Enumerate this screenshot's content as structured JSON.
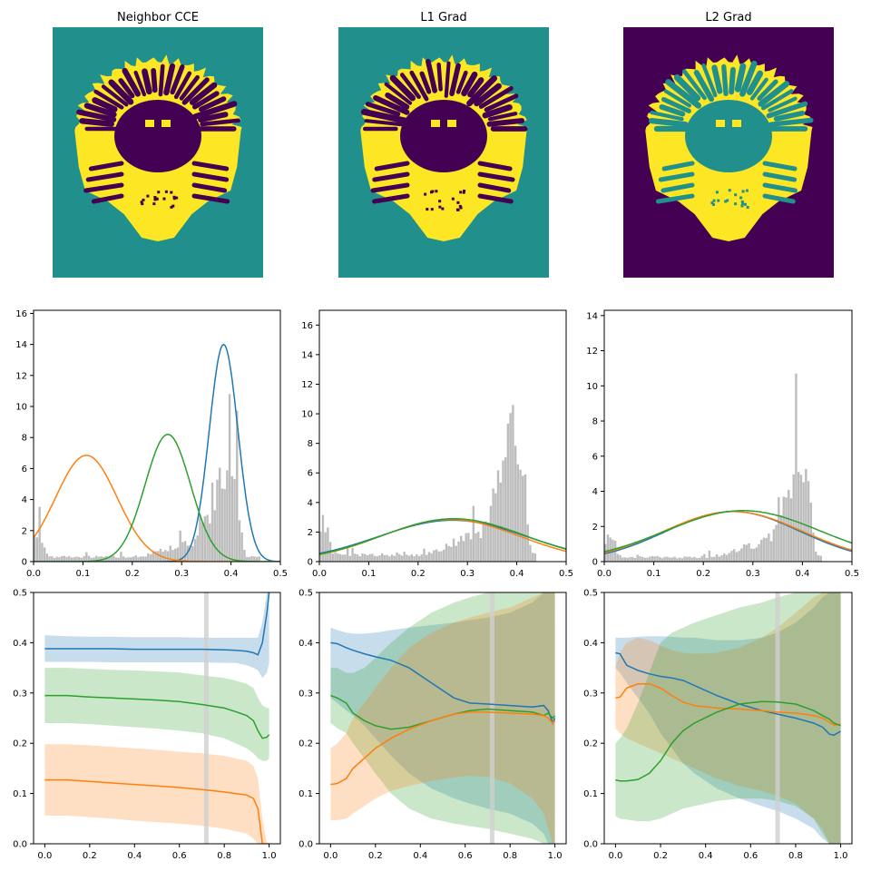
{
  "colors": {
    "blue": "#1f77b4",
    "orange": "#ff7f0e",
    "green": "#2ca02c",
    "hist": "#bdbdbd",
    "teal": "#21908d",
    "purple": "#440154",
    "yellow": "#fde725",
    "vline": "#cfcfcf"
  },
  "images": [
    {
      "title": "Neighbor CCE",
      "background": "teal",
      "brain": "yellow",
      "interior": "purple"
    },
    {
      "title": "L1 Grad",
      "background": "teal",
      "brain": "yellow",
      "interior": "purple"
    },
    {
      "title": "L2 Grad",
      "background": "purple",
      "brain": "yellow",
      "interior": "teal"
    }
  ],
  "chart_data": [
    {
      "type": "bar",
      "panel": "row2-col1",
      "title": "",
      "xlim": [
        0,
        0.5
      ],
      "ylim": [
        0,
        16.2
      ],
      "xticks": [
        0.0,
        0.1,
        0.2,
        0.3,
        0.4,
        0.5
      ],
      "yticks": [
        0,
        2,
        4,
        6,
        8,
        10,
        12,
        14,
        16
      ],
      "histogram_peak": 10.8,
      "histogram_cutoff": 0.46,
      "series": [
        {
          "color": "blue",
          "mean": 0.385,
          "sd": 0.029,
          "peak": 14.0
        },
        {
          "color": "orange",
          "mean": 0.107,
          "sd": 0.062,
          "peak": 6.85
        },
        {
          "color": "green",
          "mean": 0.272,
          "sd": 0.046,
          "peak": 8.2
        }
      ]
    },
    {
      "type": "bar",
      "panel": "row2-col2",
      "title": "",
      "xlim": [
        0,
        0.5
      ],
      "ylim": [
        0,
        17.0
      ],
      "xticks": [
        0.0,
        0.1,
        0.2,
        0.3,
        0.4,
        0.5
      ],
      "yticks": [
        0,
        2,
        4,
        6,
        8,
        10,
        12,
        14,
        16
      ],
      "histogram_peak": 10.6,
      "histogram_cutoff": 0.44,
      "series": [
        {
          "color": "blue",
          "mean": 0.27,
          "sd": 0.15,
          "peak": 2.8
        },
        {
          "color": "orange",
          "mean": 0.265,
          "sd": 0.14,
          "peak": 2.85
        },
        {
          "color": "green",
          "mean": 0.272,
          "sd": 0.145,
          "peak": 2.9
        }
      ]
    },
    {
      "type": "bar",
      "panel": "row2-col3",
      "title": "",
      "xlim": [
        0,
        0.5
      ],
      "ylim": [
        0,
        14.3
      ],
      "xticks": [
        0.0,
        0.1,
        0.2,
        0.3,
        0.4,
        0.5
      ],
      "yticks": [
        0,
        2,
        4,
        6,
        8,
        10,
        12,
        14
      ],
      "histogram_peak": 10.7,
      "histogram_cutoff": 0.44,
      "series": [
        {
          "color": "blue",
          "mean": 0.26,
          "sd": 0.135,
          "peak": 2.85
        },
        {
          "color": "orange",
          "mean": 0.26,
          "sd": 0.14,
          "peak": 2.85
        },
        {
          "color": "green",
          "mean": 0.28,
          "sd": 0.155,
          "peak": 2.9
        }
      ]
    },
    {
      "type": "line",
      "panel": "row3-col1",
      "title": "",
      "xlim": [
        -0.05,
        1.05
      ],
      "ylim": [
        0,
        0.5
      ],
      "xticks": [
        0.0,
        0.2,
        0.4,
        0.6,
        0.8,
        1.0
      ],
      "yticks": [
        0.0,
        0.1,
        0.2,
        0.3,
        0.4,
        0.5
      ],
      "vline": 0.72,
      "x": [
        0,
        0.1,
        0.2,
        0.3,
        0.4,
        0.5,
        0.6,
        0.7,
        0.8,
        0.85,
        0.9,
        0.93,
        0.95,
        0.97,
        0.99,
        1.0
      ],
      "series": [
        {
          "color": "blue",
          "values": [
            0.388,
            0.388,
            0.388,
            0.388,
            0.387,
            0.387,
            0.387,
            0.387,
            0.386,
            0.385,
            0.383,
            0.38,
            0.376,
            0.4,
            0.46,
            0.5
          ],
          "upper": [
            0.415,
            0.413,
            0.412,
            0.412,
            0.411,
            0.411,
            0.411,
            0.41,
            0.41,
            0.41,
            0.41,
            0.41,
            0.41,
            0.44,
            0.5,
            0.5
          ],
          "lower": [
            0.362,
            0.362,
            0.362,
            0.361,
            0.361,
            0.361,
            0.361,
            0.361,
            0.36,
            0.36,
            0.355,
            0.35,
            0.345,
            0.33,
            0.34,
            0.36
          ]
        },
        {
          "color": "green",
          "values": [
            0.295,
            0.295,
            0.292,
            0.29,
            0.288,
            0.286,
            0.283,
            0.277,
            0.27,
            0.263,
            0.255,
            0.245,
            0.225,
            0.21,
            0.212,
            0.217
          ],
          "upper": [
            0.35,
            0.35,
            0.348,
            0.346,
            0.345,
            0.343,
            0.341,
            0.335,
            0.33,
            0.325,
            0.318,
            0.31,
            0.29,
            0.275,
            0.27,
            0.27
          ],
          "lower": [
            0.24,
            0.24,
            0.238,
            0.235,
            0.232,
            0.229,
            0.225,
            0.22,
            0.21,
            0.2,
            0.19,
            0.18,
            0.17,
            0.165,
            0.165,
            0.17
          ]
        },
        {
          "color": "orange",
          "values": [
            0.127,
            0.127,
            0.124,
            0.121,
            0.118,
            0.115,
            0.112,
            0.108,
            0.103,
            0.1,
            0.097,
            0.09,
            0.07,
            0.0,
            0.0,
            0.0
          ],
          "upper": [
            0.198,
            0.198,
            0.196,
            0.193,
            0.19,
            0.187,
            0.183,
            0.18,
            0.175,
            0.17,
            0.165,
            0.155,
            0.13,
            0.05,
            0.0,
            0.0
          ],
          "lower": [
            0.056,
            0.056,
            0.053,
            0.05,
            0.046,
            0.043,
            0.04,
            0.036,
            0.03,
            0.025,
            0.02,
            0.01,
            0.0,
            0.0,
            0.0,
            0.0
          ]
        }
      ]
    },
    {
      "type": "line",
      "panel": "row3-col2",
      "title": "",
      "xlim": [
        -0.05,
        1.05
      ],
      "ylim": [
        0,
        0.5
      ],
      "xticks": [
        0.0,
        0.2,
        0.4,
        0.6,
        0.8,
        1.0
      ],
      "yticks": [
        0.0,
        0.1,
        0.2,
        0.3,
        0.4,
        0.5
      ],
      "vline": 0.72,
      "x": [
        0,
        0.03,
        0.07,
        0.1,
        0.15,
        0.2,
        0.27,
        0.35,
        0.45,
        0.55,
        0.62,
        0.7,
        0.8,
        0.9,
        0.95,
        0.97,
        0.99,
        1.0
      ],
      "series": [
        {
          "color": "blue",
          "values": [
            0.4,
            0.398,
            0.39,
            0.385,
            0.378,
            0.372,
            0.365,
            0.35,
            0.32,
            0.29,
            0.28,
            0.278,
            0.275,
            0.272,
            0.275,
            0.265,
            0.24,
            0.25
          ],
          "upper": [
            0.43,
            0.425,
            0.42,
            0.418,
            0.418,
            0.42,
            0.425,
            0.43,
            0.435,
            0.44,
            0.445,
            0.45,
            0.46,
            0.48,
            0.5,
            0.5,
            0.5,
            0.5
          ],
          "lower": [
            0.29,
            0.28,
            0.265,
            0.255,
            0.235,
            0.21,
            0.175,
            0.14,
            0.11,
            0.09,
            0.08,
            0.07,
            0.06,
            0.04,
            0.02,
            0.0,
            0.0,
            0.0
          ]
        },
        {
          "color": "green",
          "values": [
            0.295,
            0.29,
            0.28,
            0.26,
            0.245,
            0.235,
            0.228,
            0.232,
            0.245,
            0.258,
            0.265,
            0.268,
            0.265,
            0.262,
            0.255,
            0.26,
            0.25,
            0.255
          ],
          "upper": [
            0.35,
            0.35,
            0.34,
            0.34,
            0.35,
            0.37,
            0.4,
            0.43,
            0.46,
            0.48,
            0.49,
            0.5,
            0.5,
            0.5,
            0.5,
            0.5,
            0.5,
            0.5
          ],
          "lower": [
            0.24,
            0.23,
            0.22,
            0.2,
            0.17,
            0.14,
            0.1,
            0.07,
            0.05,
            0.04,
            0.035,
            0.03,
            0.02,
            0.01,
            0.0,
            0.0,
            0.0,
            0.0
          ]
        },
        {
          "color": "orange",
          "values": [
            0.118,
            0.12,
            0.13,
            0.15,
            0.17,
            0.19,
            0.21,
            0.228,
            0.245,
            0.258,
            0.262,
            0.262,
            0.26,
            0.258,
            0.255,
            0.25,
            0.24,
            0.245
          ],
          "upper": [
            0.19,
            0.2,
            0.22,
            0.25,
            0.28,
            0.31,
            0.35,
            0.39,
            0.42,
            0.44,
            0.45,
            0.46,
            0.47,
            0.49,
            0.5,
            0.5,
            0.5,
            0.5
          ],
          "lower": [
            0.047,
            0.047,
            0.05,
            0.06,
            0.075,
            0.09,
            0.105,
            0.115,
            0.125,
            0.132,
            0.135,
            0.133,
            0.12,
            0.09,
            0.06,
            0.03,
            0.0,
            0.0
          ]
        }
      ]
    },
    {
      "type": "line",
      "panel": "row3-col3",
      "title": "",
      "xlim": [
        -0.05,
        1.05
      ],
      "ylim": [
        0,
        0.5
      ],
      "xticks": [
        0.0,
        0.2,
        0.4,
        0.6,
        0.8,
        1.0
      ],
      "yticks": [
        0.0,
        0.1,
        0.2,
        0.3,
        0.4,
        0.5
      ],
      "vline": 0.72,
      "x": [
        0,
        0.02,
        0.05,
        0.1,
        0.15,
        0.2,
        0.25,
        0.3,
        0.35,
        0.45,
        0.55,
        0.65,
        0.72,
        0.8,
        0.88,
        0.92,
        0.95,
        0.97,
        1.0
      ],
      "series": [
        {
          "color": "blue",
          "values": [
            0.38,
            0.378,
            0.355,
            0.345,
            0.338,
            0.333,
            0.33,
            0.325,
            0.315,
            0.295,
            0.278,
            0.265,
            0.258,
            0.25,
            0.24,
            0.232,
            0.218,
            0.216,
            0.224
          ],
          "upper": [
            0.41,
            0.41,
            0.41,
            0.412,
            0.413,
            0.413,
            0.412,
            0.41,
            0.41,
            0.405,
            0.405,
            0.41,
            0.42,
            0.44,
            0.47,
            0.49,
            0.5,
            0.5,
            0.5
          ],
          "lower": [
            0.35,
            0.34,
            0.32,
            0.29,
            0.26,
            0.22,
            0.19,
            0.16,
            0.14,
            0.11,
            0.09,
            0.075,
            0.065,
            0.05,
            0.03,
            0.01,
            0.0,
            0.0,
            0.0
          ]
        },
        {
          "color": "orange",
          "values": [
            0.29,
            0.292,
            0.31,
            0.318,
            0.318,
            0.31,
            0.295,
            0.282,
            0.275,
            0.27,
            0.268,
            0.265,
            0.262,
            0.26,
            0.255,
            0.25,
            0.242,
            0.236,
            0.238
          ],
          "upper": [
            0.35,
            0.38,
            0.4,
            0.41,
            0.405,
            0.395,
            0.385,
            0.38,
            0.378,
            0.38,
            0.39,
            0.41,
            0.43,
            0.46,
            0.49,
            0.5,
            0.5,
            0.5,
            0.5
          ],
          "lower": [
            0.23,
            0.22,
            0.21,
            0.2,
            0.19,
            0.18,
            0.17,
            0.16,
            0.15,
            0.13,
            0.115,
            0.105,
            0.095,
            0.08,
            0.05,
            0.03,
            0.0,
            0.0,
            0.0
          ]
        },
        {
          "color": "green",
          "values": [
            0.127,
            0.125,
            0.125,
            0.128,
            0.14,
            0.165,
            0.2,
            0.225,
            0.24,
            0.262,
            0.278,
            0.283,
            0.282,
            0.278,
            0.265,
            0.255,
            0.248,
            0.24,
            0.235
          ],
          "upper": [
            0.2,
            0.21,
            0.23,
            0.28,
            0.34,
            0.4,
            0.42,
            0.43,
            0.44,
            0.455,
            0.47,
            0.48,
            0.49,
            0.5,
            0.5,
            0.5,
            0.5,
            0.5,
            0.5
          ],
          "lower": [
            0.055,
            0.05,
            0.048,
            0.045,
            0.045,
            0.05,
            0.06,
            0.07,
            0.075,
            0.085,
            0.09,
            0.09,
            0.085,
            0.075,
            0.05,
            0.02,
            0.0,
            0.0,
            0.0
          ]
        }
      ]
    }
  ]
}
